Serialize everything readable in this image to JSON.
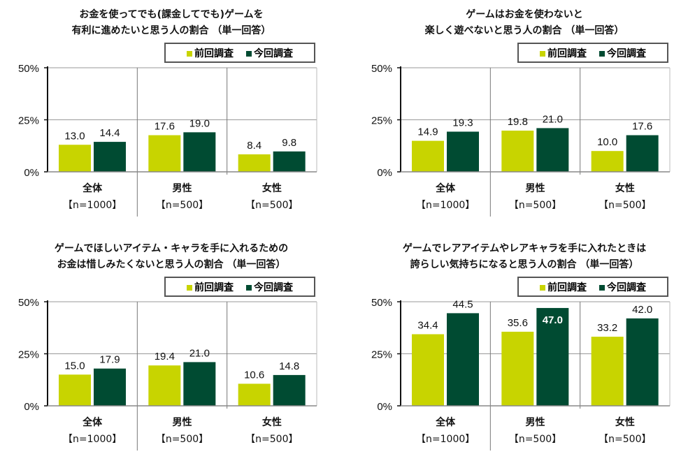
{
  "legend": {
    "prev": "前回調査",
    "curr": "今回調査"
  },
  "colors": {
    "prev": "#c8d400",
    "curr": "#004b32"
  },
  "chart_data": [
    {
      "type": "bar",
      "title": [
        "お金を使ってでも(課金してでも)ゲームを",
        "有利に進めたいと思う人の割合 （単一回答）"
      ],
      "categories": [
        [
          "全体",
          "【n=1000】"
        ],
        [
          "男性",
          "【n=500】"
        ],
        [
          "女性",
          "【n=500】"
        ]
      ],
      "series": [
        {
          "name": "前回調査",
          "values": [
            13.0,
            17.6,
            8.4
          ]
        },
        {
          "name": "今回調査",
          "values": [
            14.4,
            19.0,
            9.8
          ]
        }
      ],
      "yticks": [
        "0%",
        "25%",
        "50%"
      ],
      "ylim": [
        0,
        50
      ],
      "grid": true,
      "legend_position": "top-right"
    },
    {
      "type": "bar",
      "title": [
        "ゲームはお金を使わないと",
        "楽しく遊べないと思う人の割合 （単一回答）"
      ],
      "categories": [
        [
          "全体",
          "【n=1000】"
        ],
        [
          "男性",
          "【n=500】"
        ],
        [
          "女性",
          "【n=500】"
        ]
      ],
      "series": [
        {
          "name": "前回調査",
          "values": [
            14.9,
            19.8,
            10.0
          ]
        },
        {
          "name": "今回調査",
          "values": [
            19.3,
            21.0,
            17.6
          ]
        }
      ],
      "yticks": [
        "0%",
        "25%",
        "50%"
      ],
      "ylim": [
        0,
        50
      ],
      "grid": true,
      "legend_position": "top-right"
    },
    {
      "type": "bar",
      "title": [
        "ゲームでほしいアイテム・キャラを手に入れるための",
        "お金は惜しみたくないと思う人の割合 （単一回答）"
      ],
      "categories": [
        [
          "全体",
          "【n=1000】"
        ],
        [
          "男性",
          "【n=500】"
        ],
        [
          "女性",
          "【n=500】"
        ]
      ],
      "series": [
        {
          "name": "前回調査",
          "values": [
            15.0,
            19.4,
            10.6
          ]
        },
        {
          "name": "今回調査",
          "values": [
            17.9,
            21.0,
            14.8
          ]
        }
      ],
      "yticks": [
        "0%",
        "25%",
        "50%"
      ],
      "ylim": [
        0,
        50
      ],
      "grid": true,
      "legend_position": "top-right"
    },
    {
      "type": "bar",
      "title": [
        "ゲームでレアアイテムやレアキャラを手に入れたときは",
        "誇らしい気持ちになると思う人の割合 （単一回答）"
      ],
      "categories": [
        [
          "全体",
          "【n=1000】"
        ],
        [
          "男性",
          "【n=500】"
        ],
        [
          "女性",
          "【n=500】"
        ]
      ],
      "series": [
        {
          "name": "前回調査",
          "values": [
            34.4,
            35.6,
            33.2
          ]
        },
        {
          "name": "今回調査",
          "values": [
            44.5,
            47.0,
            42.0
          ]
        }
      ],
      "yticks": [
        "0%",
        "25%",
        "50%"
      ],
      "ylim": [
        0,
        50
      ],
      "grid": true,
      "legend_position": "top-right"
    }
  ]
}
